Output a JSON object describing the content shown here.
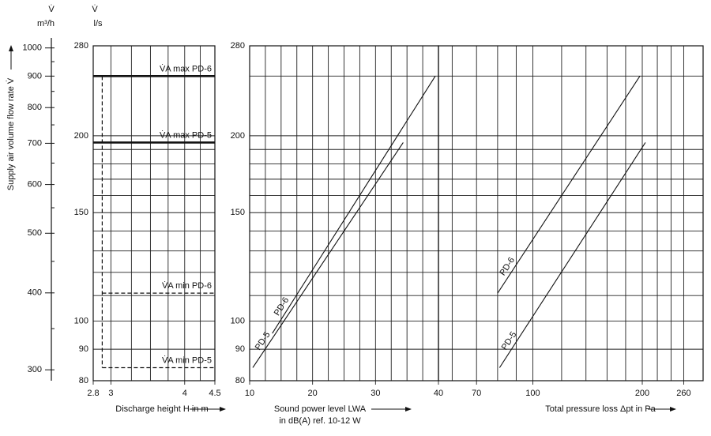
{
  "chart_data": [
    {
      "type": "line",
      "ylabel": "Supply air volume flow rate V̇",
      "y_symbol": "V̇",
      "y_unit": "l/s",
      "y2_unit": "m³/h",
      "xlabel": "Discharge height H in m",
      "xscale": "log",
      "xlim": [
        2.8,
        4.5
      ],
      "xticks": [
        2.8,
        3,
        4,
        4.5
      ],
      "xgrid": [
        3.25,
        3.5,
        3.75,
        4.25
      ],
      "yscale": "log",
      "ylim": [
        80,
        280
      ],
      "yticks": [
        80,
        90,
        100,
        150,
        200,
        280
      ],
      "ygrid": [
        110,
        120,
        130,
        140,
        160,
        170,
        180,
        190,
        250
      ],
      "y2lim": [
        288,
        1008
      ],
      "y2ticks": [
        300,
        400,
        500,
        600,
        700,
        800,
        900,
        1000
      ],
      "y2minor": [
        350,
        450,
        550,
        650,
        750,
        850,
        950
      ],
      "series": [
        {
          "name": "V̇A max PD-6",
          "style": "bold",
          "x": [
            2.8,
            4.5
          ],
          "values": [
            250,
            250
          ]
        },
        {
          "name": "V̇A max PD-5",
          "style": "bold",
          "x": [
            2.8,
            4.5
          ],
          "values": [
            195,
            195
          ]
        },
        {
          "name": "V̇A min PD-6",
          "style": "dashed",
          "x": [
            2.9,
            4.5
          ],
          "values": [
            111,
            111
          ]
        },
        {
          "name": "V̇A min PD-5",
          "style": "dashed",
          "x": [
            2.9,
            4.5
          ],
          "values": [
            84,
            84
          ]
        },
        {
          "style": "dashed",
          "x": [
            2.9,
            2.9
          ],
          "values": [
            250,
            84
          ]
        }
      ]
    },
    {
      "type": "line",
      "xlabel": [
        "Sound power level LWA",
        "in dB(A) ref. 10-12 W"
      ],
      "xscale": "linear",
      "xlim": [
        10,
        40
      ],
      "xticks": [
        10,
        20,
        30,
        40
      ],
      "xgrid": [
        12.5,
        15,
        17.5,
        22.5,
        25,
        27.5,
        32.5,
        35,
        37.5
      ],
      "yscale": "log",
      "ylim": [
        80,
        280
      ],
      "yticks": [
        80,
        90,
        100,
        150,
        200,
        280
      ],
      "ygrid": [
        110,
        120,
        130,
        140,
        160,
        170,
        180,
        190,
        250
      ],
      "series": [
        {
          "name": "PD-6",
          "style": "solid",
          "x": [
            13.6,
            39.5
          ],
          "values": [
            95.5,
            250
          ]
        },
        {
          "name": "PD-5",
          "style": "solid",
          "x": [
            10.5,
            34.4
          ],
          "values": [
            84,
            195
          ]
        }
      ]
    },
    {
      "type": "line",
      "xlabel": "Total pressure loss Δpt in Pa",
      "xscale": "log",
      "xlim": [
        55,
        294
      ],
      "xticks": [
        70,
        100,
        200,
        260
      ],
      "xgrid": [
        60,
        80,
        90,
        120,
        140,
        160,
        180,
        220,
        240
      ],
      "yscale": "log",
      "ylim": [
        80,
        280
      ],
      "ygrid": [
        80,
        90,
        100,
        110,
        120,
        130,
        140,
        150,
        160,
        170,
        180,
        190,
        200,
        250,
        280
      ],
      "series": [
        {
          "name": "PD-6",
          "style": "solid",
          "x": [
            80,
            197
          ],
          "values": [
            111,
            250
          ]
        },
        {
          "name": "PD-5",
          "style": "solid",
          "x": [
            81,
            204
          ],
          "values": [
            84,
            195
          ]
        }
      ]
    }
  ]
}
